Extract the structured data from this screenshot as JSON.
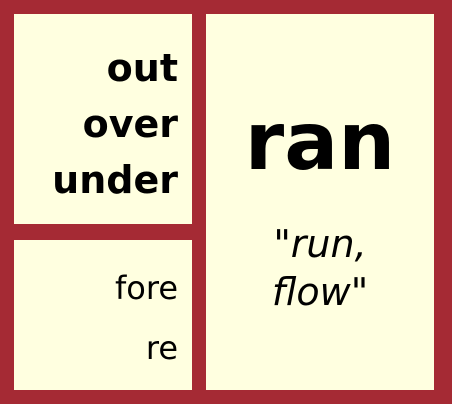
{
  "prefixes_bold": [
    "out",
    "over",
    "under"
  ],
  "prefixes_regular": [
    "fore",
    "re"
  ],
  "word": "ran",
  "meaning": [
    "\"run,",
    "flow\""
  ],
  "colors": {
    "frame": "#a52a34",
    "panel": "#ffffe0",
    "text": "#000000"
  }
}
